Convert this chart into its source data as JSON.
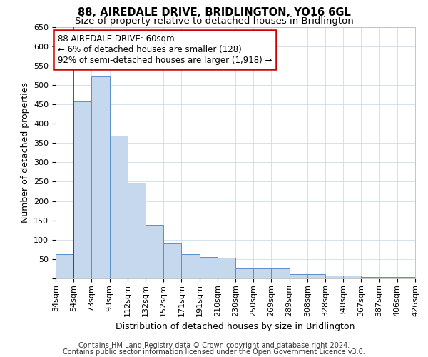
{
  "title1": "88, AIREDALE DRIVE, BRIDLINGTON, YO16 6GL",
  "title2": "Size of property relative to detached houses in Bridlington",
  "xlabel": "Distribution of detached houses by size in Bridlington",
  "ylabel": "Number of detached properties",
  "footnote1": "Contains HM Land Registry data © Crown copyright and database right 2024.",
  "footnote2": "Contains public sector information licensed under the Open Government Licence v3.0.",
  "annotation_line1": "88 AIREDALE DRIVE: 60sqm",
  "annotation_line2": "← 6% of detached houses are smaller (128)",
  "annotation_line3": "92% of semi-detached houses are larger (1,918) →",
  "bar_values": [
    62,
    457,
    521,
    368,
    248,
    139,
    91,
    62,
    55,
    53,
    26,
    26,
    26,
    11,
    11,
    8,
    8,
    4,
    4,
    4
  ],
  "categories": [
    "34sqm",
    "54sqm",
    "73sqm",
    "93sqm",
    "112sqm",
    "132sqm",
    "152sqm",
    "171sqm",
    "191sqm",
    "210sqm",
    "230sqm",
    "250sqm",
    "269sqm",
    "289sqm",
    "308sqm",
    "328sqm",
    "348sqm",
    "367sqm",
    "387sqm",
    "406sqm",
    "426sqm"
  ],
  "bar_color": "#c5d8ed",
  "bar_edge_color": "#5b8fc9",
  "red_line_index": 1,
  "ylim": [
    0,
    650
  ],
  "yticks": [
    0,
    50,
    100,
    150,
    200,
    250,
    300,
    350,
    400,
    450,
    500,
    550,
    600,
    650
  ],
  "background_color": "#ffffff",
  "grid_color": "#d0dded",
  "annotation_box_edge_color": "#cc0000",
  "title1_fontsize": 10.5,
  "title2_fontsize": 9.5,
  "axis_label_fontsize": 9,
  "tick_fontsize": 8,
  "annotation_fontsize": 8.5,
  "footnote_fontsize": 7
}
